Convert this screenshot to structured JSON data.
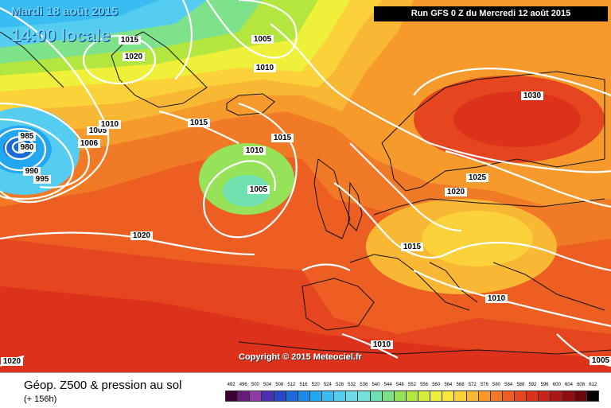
{
  "header": {
    "date": "Mardi 18 août 2015",
    "time": "14:00 locale"
  },
  "run_label": "Run GFS 0 Z du Mercredi 12 août 2015",
  "copyright": "Copyright © 2015 Meteociel.fr",
  "legend": {
    "title": "Géop. Z500 & pression au sol",
    "subtitle": "(+ 156h)",
    "scale_values": [
      "492",
      "496",
      "500",
      "504",
      "508",
      "512",
      "516",
      "520",
      "524",
      "528",
      "532",
      "536",
      "540",
      "544",
      "548",
      "552",
      "556",
      "560",
      "564",
      "568",
      "572",
      "576",
      "580",
      "584",
      "588",
      "592",
      "596",
      "600",
      "604",
      "608",
      "612"
    ],
    "scale_colors": [
      "#3a0034",
      "#6a1a7a",
      "#8a3ca0",
      "#4b2fb0",
      "#2747c8",
      "#1a6ad8",
      "#1c8ae6",
      "#22a6f0",
      "#38bcf2",
      "#55cdf0",
      "#6cdcea",
      "#74e2d8",
      "#6fe0b0",
      "#7ee28a",
      "#96e35a",
      "#b4e640",
      "#d4ec3a",
      "#eef03a",
      "#fbe63c",
      "#fbd23a",
      "#f9b834",
      "#f69a2c",
      "#f17a26",
      "#ec5e22",
      "#e6461f",
      "#dc321c",
      "#c8241a",
      "#ad1616",
      "#8e0e10",
      "#6c060a",
      "#000000"
    ]
  },
  "isobars": [
    {
      "value": "1015",
      "kind": "label"
    },
    {
      "value": "1020",
      "kind": "label"
    },
    {
      "value": "1005",
      "kind": "label"
    },
    {
      "value": "1010",
      "kind": "label"
    },
    {
      "value": "985",
      "kind": "label"
    },
    {
      "value": "980",
      "kind": "label"
    },
    {
      "value": "1005",
      "kind": "label"
    },
    {
      "value": "1006",
      "kind": "label"
    },
    {
      "value": "1010",
      "kind": "label"
    },
    {
      "value": "990",
      "kind": "label"
    },
    {
      "value": "995",
      "kind": "label"
    },
    {
      "value": "1015",
      "kind": "label"
    },
    {
      "value": "1015",
      "kind": "label"
    },
    {
      "value": "1010",
      "kind": "label"
    },
    {
      "value": "1005",
      "kind": "label"
    },
    {
      "value": "1020",
      "kind": "label"
    },
    {
      "value": "1030",
      "kind": "label"
    },
    {
      "value": "1025",
      "kind": "label"
    },
    {
      "value": "1020",
      "kind": "label"
    },
    {
      "value": "1015",
      "kind": "label"
    },
    {
      "value": "1010",
      "kind": "label"
    },
    {
      "value": "1010",
      "kind": "label"
    },
    {
      "value": "1020",
      "kind": "label"
    },
    {
      "value": "1005",
      "kind": "label"
    }
  ]
}
